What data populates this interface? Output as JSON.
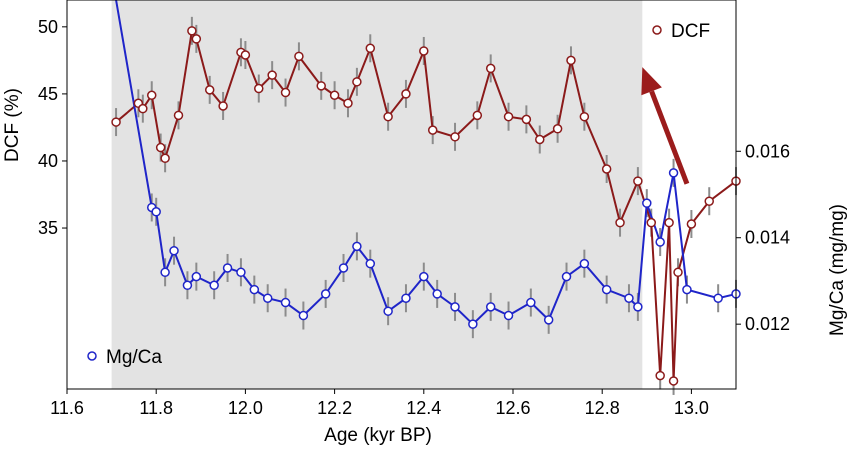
{
  "chart_data": {
    "type": "line",
    "xlabel": "Age (kyr BP)",
    "ylabel_left": "DCF (%)",
    "ylabel_right": "Mg/Ca (mg/mg)",
    "xlim": [
      11.6,
      13.1
    ],
    "ylim_left": [
      23,
      52
    ],
    "ylim_right": [
      0.0105,
      0.0195
    ],
    "x_ticks": [
      "11.6",
      "11.8",
      "12.0",
      "12.2",
      "12.4",
      "12.6",
      "12.8",
      "13.0"
    ],
    "x_tick_values": [
      11.6,
      11.8,
      12.0,
      12.2,
      12.4,
      12.6,
      12.8,
      13.0
    ],
    "y_left_ticks": [
      "50",
      "45",
      "40",
      "35"
    ],
    "y_left_tick_values": [
      50,
      45,
      40,
      35
    ],
    "y_right_ticks": [
      "0.016",
      "0.014",
      "0.012"
    ],
    "y_right_tick_values": [
      0.016,
      0.014,
      0.012
    ],
    "shaded_interval": [
      11.7,
      12.89
    ],
    "arrow": {
      "from": [
        12.99,
        38.3
      ],
      "to": [
        12.89,
        47.0
      ],
      "color": "#9b1c1c"
    },
    "series": [
      {
        "name": "DCF",
        "axis": "left",
        "color": "#8b1a1a",
        "x": [
          11.71,
          11.76,
          11.77,
          11.79,
          11.81,
          11.82,
          11.85,
          11.88,
          11.89,
          11.92,
          11.95,
          11.99,
          12.0,
          12.03,
          12.06,
          12.09,
          12.12,
          12.17,
          12.2,
          12.23,
          12.25,
          12.28,
          12.32,
          12.36,
          12.4,
          12.42,
          12.47,
          12.52,
          12.55,
          12.59,
          12.63,
          12.66,
          12.7,
          12.73,
          12.76,
          12.81,
          12.84,
          12.88,
          12.91,
          12.93,
          12.95,
          12.96,
          12.97,
          13.0,
          13.04,
          13.1
        ],
        "y": [
          42.9,
          44.3,
          43.9,
          44.9,
          41.0,
          40.2,
          43.4,
          49.7,
          49.1,
          45.3,
          44.1,
          48.1,
          47.9,
          45.4,
          46.4,
          45.1,
          47.8,
          45.6,
          44.9,
          44.3,
          45.9,
          48.4,
          43.3,
          45.0,
          48.2,
          42.3,
          41.8,
          43.4,
          46.9,
          43.3,
          43.1,
          41.6,
          42.4,
          47.5,
          43.3,
          39.4,
          35.4,
          38.5,
          35.4,
          24.0,
          35.4,
          23.6,
          31.7,
          35.3,
          37.0,
          38.5
        ]
      },
      {
        "name": "Mg/Ca",
        "axis": "right",
        "color": "#1f25c9",
        "x": [
          11.71,
          11.79,
          11.8,
          11.82,
          11.84,
          11.87,
          11.89,
          11.93,
          11.96,
          11.99,
          12.02,
          12.05,
          12.09,
          12.13,
          12.18,
          12.22,
          12.25,
          12.28,
          12.32,
          12.36,
          12.4,
          12.43,
          12.47,
          12.51,
          12.55,
          12.59,
          12.64,
          12.68,
          12.72,
          12.76,
          12.81,
          12.86,
          12.88,
          12.9,
          12.93,
          12.96,
          12.99,
          13.06,
          13.1
        ],
        "y": [
          0.0195,
          0.0147,
          0.0146,
          0.0132,
          0.0137,
          0.0129,
          0.0131,
          0.0129,
          0.0133,
          0.0132,
          0.0128,
          0.0126,
          0.0125,
          0.0122,
          0.0127,
          0.0133,
          0.0138,
          0.0134,
          0.0123,
          0.0126,
          0.0131,
          0.0127,
          0.0124,
          0.012,
          0.0124,
          0.0122,
          0.0125,
          0.0121,
          0.0131,
          0.0134,
          0.0128,
          0.0126,
          0.0124,
          0.0148,
          0.0139,
          0.0155,
          0.0128,
          0.0126,
          0.0127
        ]
      }
    ],
    "legend": [
      {
        "label": "DCF",
        "series": "DCF",
        "placement": "top-right"
      },
      {
        "label": "Mg/Ca",
        "series": "Mg/Ca",
        "placement": "bottom-left"
      }
    ]
  }
}
